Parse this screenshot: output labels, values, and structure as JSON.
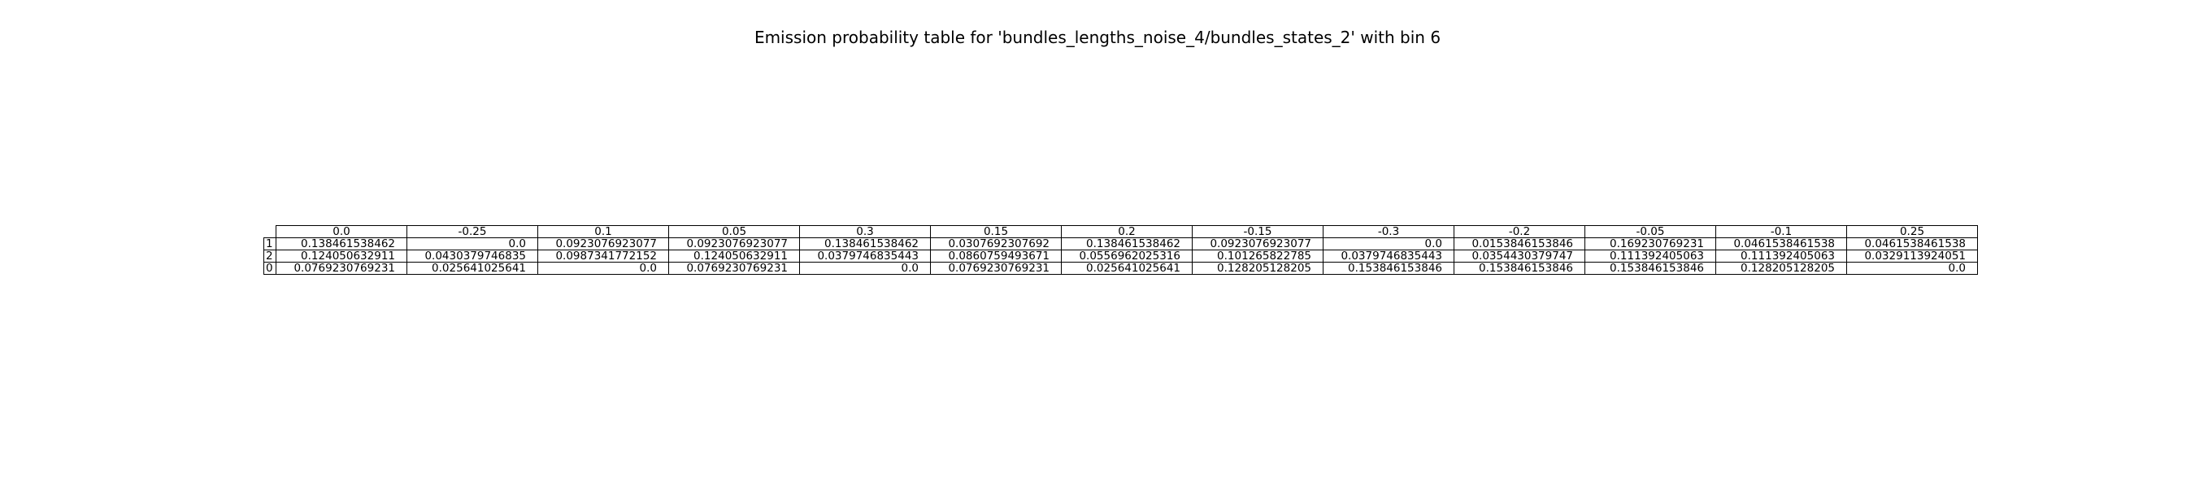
{
  "chart_data": {
    "type": "table",
    "title": "Emission probability table for 'bundles_lengths_noise_4/bundles_states_2' with bin 6",
    "columns": [
      "0.0",
      "-0.25",
      "0.1",
      "0.05",
      "0.3",
      "0.15",
      "0.2",
      "-0.15",
      "-0.3",
      "-0.2",
      "-0.05",
      "-0.1",
      "0.25"
    ],
    "rows": [
      {
        "label": "1",
        "values": [
          "0.138461538462",
          "0.0",
          "0.0923076923077",
          "0.0923076923077",
          "0.138461538462",
          "0.0307692307692",
          "0.138461538462",
          "0.0923076923077",
          "0.0",
          "0.0153846153846",
          "0.169230769231",
          "0.0461538461538",
          "0.0461538461538"
        ]
      },
      {
        "label": "2",
        "values": [
          "0.124050632911",
          "0.0430379746835",
          "0.0987341772152",
          "0.124050632911",
          "0.0379746835443",
          "0.0860759493671",
          "0.0556962025316",
          "0.101265822785",
          "0.0379746835443",
          "0.0354430379747",
          "0.111392405063",
          "0.111392405063",
          "0.0329113924051"
        ]
      },
      {
        "label": "0",
        "values": [
          "0.0769230769231",
          "0.025641025641",
          "0.0",
          "0.0769230769231",
          "0.0",
          "0.0769230769231",
          "0.025641025641",
          "0.128205128205",
          "0.153846153846",
          "0.153846153846",
          "0.153846153846",
          "0.128205128205",
          "0.0"
        ]
      }
    ]
  }
}
